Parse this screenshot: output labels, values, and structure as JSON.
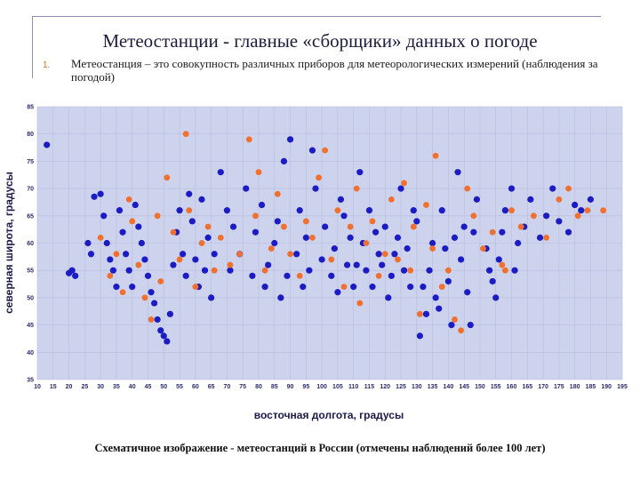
{
  "slide": {
    "title": "Метеостанции - главные «сборщики» данных о погоде",
    "list_number": "1.",
    "description": "Метеостанция – это совокупность различных приборов для метеорологических измерений (наблюдения за погодой)",
    "caption": "Схематичное изображение - метеостанций в России (отмечены наблюдений более 100 лет)"
  },
  "colors": {
    "blue": "#1c1cc4",
    "orange": "#f07030",
    "plot_bg": "#cdd3ec",
    "grid": "#b7bde0"
  },
  "chart_data": {
    "type": "scatter",
    "xlabel": "восточная долгота, градусы",
    "ylabel": "северная широта, градусы",
    "xlim": [
      10,
      195
    ],
    "ylim": [
      35,
      85
    ],
    "x_ticks": [
      10,
      15,
      20,
      25,
      30,
      35,
      40,
      45,
      50,
      55,
      60,
      65,
      70,
      75,
      80,
      85,
      90,
      95,
      100,
      105,
      110,
      115,
      120,
      125,
      130,
      135,
      140,
      145,
      150,
      155,
      160,
      165,
      170,
      175,
      180,
      185,
      190,
      195
    ],
    "y_ticks": [
      35,
      40,
      45,
      50,
      55,
      60,
      65,
      70,
      75,
      80,
      85
    ],
    "grid": true,
    "series": [
      {
        "color": "blue",
        "points": [
          [
            13,
            78
          ],
          [
            20,
            54.5
          ],
          [
            21,
            55
          ],
          [
            22,
            54
          ],
          [
            26,
            60
          ],
          [
            27,
            58
          ],
          [
            28,
            68.5
          ],
          [
            30,
            69
          ],
          [
            31,
            65
          ],
          [
            32,
            60
          ],
          [
            33,
            57
          ],
          [
            34,
            55
          ],
          [
            35,
            52
          ],
          [
            36,
            66
          ],
          [
            37,
            62
          ],
          [
            38,
            58
          ],
          [
            39,
            55
          ],
          [
            40,
            52
          ],
          [
            41,
            67
          ],
          [
            42,
            63
          ],
          [
            43,
            60
          ],
          [
            44,
            57
          ],
          [
            45,
            54
          ],
          [
            46,
            51
          ],
          [
            47,
            49
          ],
          [
            48,
            46
          ],
          [
            49,
            44
          ],
          [
            50,
            43
          ],
          [
            51,
            42
          ],
          [
            52,
            47
          ],
          [
            53,
            56
          ],
          [
            54,
            62
          ],
          [
            55,
            66
          ],
          [
            56,
            58
          ],
          [
            57,
            54
          ],
          [
            58,
            69
          ],
          [
            59,
            64
          ],
          [
            60,
            57
          ],
          [
            61,
            52
          ],
          [
            62,
            68
          ],
          [
            63,
            55
          ],
          [
            64,
            61
          ],
          [
            65,
            50
          ],
          [
            66,
            58
          ],
          [
            68,
            73
          ],
          [
            70,
            66
          ],
          [
            71,
            55
          ],
          [
            72,
            63
          ],
          [
            74,
            58
          ],
          [
            76,
            70
          ],
          [
            78,
            54
          ],
          [
            79,
            62
          ],
          [
            81,
            67
          ],
          [
            82,
            52
          ],
          [
            83,
            56
          ],
          [
            85,
            60
          ],
          [
            86,
            64
          ],
          [
            87,
            50
          ],
          [
            88,
            75
          ],
          [
            89,
            54
          ],
          [
            90,
            79
          ],
          [
            92,
            58
          ],
          [
            93,
            66
          ],
          [
            94,
            52
          ],
          [
            95,
            61
          ],
          [
            96,
            55
          ],
          [
            97,
            77
          ],
          [
            98,
            70
          ],
          [
            100,
            57
          ],
          [
            101,
            63
          ],
          [
            103,
            54
          ],
          [
            104,
            59
          ],
          [
            105,
            51
          ],
          [
            106,
            68
          ],
          [
            107,
            65
          ],
          [
            108,
            56
          ],
          [
            109,
            61
          ],
          [
            110,
            52
          ],
          [
            111,
            56
          ],
          [
            112,
            73
          ],
          [
            113,
            60
          ],
          [
            114,
            55
          ],
          [
            115,
            66
          ],
          [
            116,
            52
          ],
          [
            117,
            62
          ],
          [
            118,
            58
          ],
          [
            119,
            56
          ],
          [
            120,
            63
          ],
          [
            121,
            50
          ],
          [
            122,
            54
          ],
          [
            123,
            58
          ],
          [
            124,
            61
          ],
          [
            125,
            70
          ],
          [
            126,
            55
          ],
          [
            127,
            59
          ],
          [
            128,
            52
          ],
          [
            129,
            66
          ],
          [
            130,
            64
          ],
          [
            131,
            43
          ],
          [
            132,
            52
          ],
          [
            133,
            47
          ],
          [
            134,
            55
          ],
          [
            135,
            60
          ],
          [
            136,
            50
          ],
          [
            137,
            48
          ],
          [
            138,
            66
          ],
          [
            139,
            59
          ],
          [
            140,
            53
          ],
          [
            141,
            45
          ],
          [
            142,
            61
          ],
          [
            143,
            73
          ],
          [
            144,
            57
          ],
          [
            145,
            63
          ],
          [
            146,
            51
          ],
          [
            147,
            45
          ],
          [
            148,
            62
          ],
          [
            149,
            68
          ],
          [
            152,
            59
          ],
          [
            153,
            55
          ],
          [
            154,
            53
          ],
          [
            155,
            50
          ],
          [
            156,
            57
          ],
          [
            157,
            62
          ],
          [
            158,
            66
          ],
          [
            160,
            70
          ],
          [
            161,
            55
          ],
          [
            162,
            60
          ],
          [
            164,
            63
          ],
          [
            166,
            68
          ],
          [
            169,
            61
          ],
          [
            171,
            65
          ],
          [
            173,
            70
          ],
          [
            175,
            64
          ],
          [
            178,
            62
          ],
          [
            180,
            67
          ],
          [
            182,
            66
          ],
          [
            185,
            68
          ]
        ]
      },
      {
        "color": "orange",
        "points": [
          [
            30,
            61
          ],
          [
            33,
            54
          ],
          [
            35,
            58
          ],
          [
            37,
            51
          ],
          [
            39,
            68
          ],
          [
            40,
            64
          ],
          [
            42,
            56
          ],
          [
            44,
            50
          ],
          [
            46,
            46
          ],
          [
            48,
            65
          ],
          [
            49,
            53
          ],
          [
            51,
            72
          ],
          [
            53,
            62
          ],
          [
            55,
            57
          ],
          [
            57,
            80
          ],
          [
            58,
            66
          ],
          [
            60,
            52
          ],
          [
            62,
            60
          ],
          [
            64,
            63
          ],
          [
            66,
            55
          ],
          [
            68,
            61
          ],
          [
            71,
            56
          ],
          [
            74,
            58
          ],
          [
            77,
            79
          ],
          [
            79,
            65
          ],
          [
            80,
            73
          ],
          [
            82,
            55
          ],
          [
            84,
            59
          ],
          [
            86,
            69
          ],
          [
            88,
            63
          ],
          [
            90,
            58
          ],
          [
            93,
            54
          ],
          [
            95,
            64
          ],
          [
            97,
            61
          ],
          [
            99,
            72
          ],
          [
            101,
            77
          ],
          [
            103,
            57
          ],
          [
            105,
            66
          ],
          [
            107,
            52
          ],
          [
            109,
            63
          ],
          [
            111,
            70
          ],
          [
            112,
            49
          ],
          [
            114,
            60
          ],
          [
            116,
            64
          ],
          [
            118,
            54
          ],
          [
            120,
            58
          ],
          [
            122,
            68
          ],
          [
            124,
            57
          ],
          [
            126,
            71
          ],
          [
            128,
            55
          ],
          [
            129,
            63
          ],
          [
            131,
            47
          ],
          [
            133,
            67
          ],
          [
            135,
            59
          ],
          [
            136,
            76
          ],
          [
            138,
            52
          ],
          [
            140,
            55
          ],
          [
            142,
            46
          ],
          [
            144,
            44
          ],
          [
            146,
            70
          ],
          [
            148,
            65
          ],
          [
            151,
            59
          ],
          [
            154,
            62
          ],
          [
            157,
            56
          ],
          [
            158,
            55
          ],
          [
            160,
            66
          ],
          [
            163,
            63
          ],
          [
            167,
            65
          ],
          [
            171,
            61
          ],
          [
            175,
            68
          ],
          [
            178,
            70
          ],
          [
            181,
            65
          ],
          [
            184,
            66
          ],
          [
            189,
            66
          ]
        ]
      }
    ]
  }
}
